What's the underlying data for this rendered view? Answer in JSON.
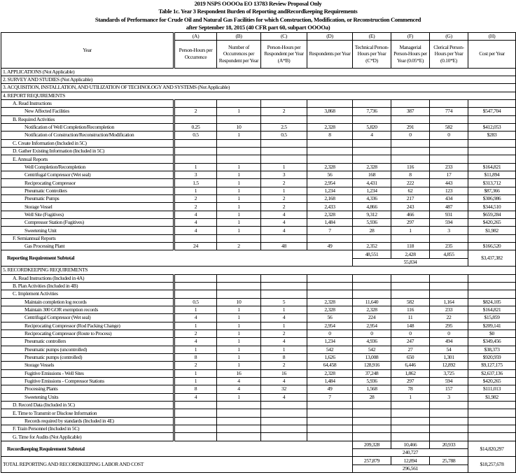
{
  "titles": [
    "2019 NSPS OOOOa EO 13783 Review Proposal Only",
    "Table 1c.  Year 3 Respondent Burden of Reporting andRecordkeeping Requirements",
    "Standards of Performance for Crude Oil and Natural Gas Facilities for which Construction, Modification, or Reconstruction Commenced",
    "after September 18, 2015 (40 CFR part 60, subpart OOOOa)"
  ],
  "header": {
    "year": "Year",
    "letters": [
      "(A)",
      "(B)",
      "(C)",
      "(D)",
      "(E)",
      "(F)",
      "(G)",
      "(H)"
    ],
    "columns": [
      "Person-Hours per Occurrence",
      "Number of Occurrences per Respondent per Year",
      "Person-Hours per Respondent per Year (A*B)",
      "Respondents per Year",
      "Technical Person-Hours per Year (C*D)",
      "Managerial Person-Hours per Year (0.05*E)",
      "Clerical Person-Hours per Year (0.10*E)",
      "Cost per Year"
    ]
  },
  "rows": [
    {
      "type": "section",
      "label": "1. APPLICATIONS (Not Applicable)"
    },
    {
      "type": "section",
      "label": "2. SURVEY AND STUDIES (Not Applicable)"
    },
    {
      "type": "section",
      "label": "3. ACQUISITION, INSTALLATION, AND UTILIZATION OF TECHNOLOGY AND SYSTEMS (Not Applicable)"
    },
    {
      "type": "section",
      "label": "4. REPORT REQUIREMENTS"
    },
    {
      "type": "sub",
      "label": "A. Read Instructions"
    },
    {
      "type": "item",
      "label": "New Affected Facilities",
      "values": [
        "2",
        "1",
        "2",
        "3,868",
        "7,736",
        "387",
        "774",
        "$547,704"
      ]
    },
    {
      "type": "sub",
      "label": "B. Required Activities"
    },
    {
      "type": "item",
      "label": "Notification of Well Completion/Recompletion",
      "values": [
        "0.25",
        "10",
        "2.5",
        "2,328",
        "5,820",
        "291",
        "582",
        "$412,053"
      ]
    },
    {
      "type": "item",
      "label": "Notification of Construction/Reconstruction/Modification",
      "values": [
        "0.5",
        "1",
        "0.5",
        "8",
        "4",
        "0",
        "0",
        "$283"
      ]
    },
    {
      "type": "sub",
      "label": "C. Create Information (Included in 5C)"
    },
    {
      "type": "sub",
      "label": "D. Gather Existing Information (Included in 5C)"
    },
    {
      "type": "sub",
      "label": "E. Annual Reports"
    },
    {
      "type": "item",
      "label": "Well Completion/Recompletion",
      "values": [
        "1",
        "1",
        "1",
        "2,328",
        "2,328",
        "116",
        "233",
        "$164,821"
      ]
    },
    {
      "type": "item",
      "label": "Centrifugal Compressor (Wet seal)",
      "values": [
        "3",
        "1",
        "3",
        "56",
        "168",
        "8",
        "17",
        "$11,894"
      ]
    },
    {
      "type": "item",
      "label": "Reciprocating Compressor",
      "values": [
        "1.5",
        "1",
        "2",
        "2,954",
        "4,431",
        "222",
        "443",
        "$313,712"
      ]
    },
    {
      "type": "item",
      "label": "Pneumatic Controllers",
      "values": [
        "1",
        "1",
        "1",
        "1,234",
        "1,234",
        "62",
        "123",
        "$87,366"
      ]
    },
    {
      "type": "item",
      "label": "Pneumatic Pumps",
      "values": [
        "2",
        "1",
        "2",
        "2,168",
        "4,336",
        "217",
        "434",
        "$306,986"
      ]
    },
    {
      "type": "item",
      "label": "Storage Vessel",
      "values": [
        "2",
        "1",
        "2",
        "2,433",
        "4,866",
        "243",
        "487",
        "$344,510"
      ]
    },
    {
      "type": "item",
      "label": "Well Site (Fugitives)",
      "values": [
        "4",
        "1",
        "4",
        "2,328",
        "9,312",
        "466",
        "931",
        "$659,284"
      ]
    },
    {
      "type": "item",
      "label": "Compressor Station (Fugitives)",
      "values": [
        "4",
        "1",
        "4",
        "1,484",
        "5,936",
        "297",
        "594",
        "$420,265"
      ]
    },
    {
      "type": "item",
      "label": "Sweetening Unit",
      "values": [
        "4",
        "1",
        "4",
        "7",
        "28",
        "1",
        "3",
        "$1,982"
      ]
    },
    {
      "type": "sub",
      "label": "F. Semiannual Reports"
    },
    {
      "type": "item",
      "label": "Gas Processing Plant",
      "values": [
        "24",
        "2",
        "48",
        "49",
        "2,352",
        "118",
        "235",
        "$166,520"
      ]
    },
    {
      "type": "subtotal",
      "label": "Reporting Requirement Subtotal",
      "e": "48,551",
      "f": "2,428",
      "g": "4,855",
      "combined": "55,834",
      "h": "$3,437,382"
    },
    {
      "type": "section",
      "label": "5. RECORDKEEPING REQUIREMENTS"
    },
    {
      "type": "sub",
      "label": "A. Read Instructions (Included in 4A)"
    },
    {
      "type": "sub",
      "label": "B. Plan Activities (Included in 4B)"
    },
    {
      "type": "sub",
      "label": "C. Implement Activities"
    },
    {
      "type": "item",
      "label": "Maintain completion log records",
      "values": [
        "0.5",
        "10",
        "5",
        "2,328",
        "11,640",
        "582",
        "1,164",
        "$824,105"
      ]
    },
    {
      "type": "item",
      "label": "Maintain 300 GOR exemption records",
      "values": [
        "1",
        "1",
        "1",
        "2,328",
        "2,328",
        "116",
        "233",
        "$164,821"
      ]
    },
    {
      "type": "item",
      "label": "Centrifugal Compressor (Wet seal)",
      "values": [
        "4",
        "1",
        "4",
        "56",
        "224",
        "11",
        "22",
        "$15,859"
      ]
    },
    {
      "type": "item",
      "label": "Reciprocating Compressor (Rod Packing Change)",
      "values": [
        "1",
        "1",
        "1",
        "2,954",
        "2,954",
        "148",
        "295",
        "$209,141"
      ]
    },
    {
      "type": "item",
      "label": "Reciprocating Compressor (Route to Process)",
      "values": [
        "2",
        "1",
        "2",
        "0",
        "0",
        "0",
        "0",
        "$0"
      ]
    },
    {
      "type": "item",
      "label": "Pneumatic controllers",
      "values": [
        "4",
        "1",
        "4",
        "1,234",
        "4,936",
        "247",
        "494",
        "$349,456"
      ]
    },
    {
      "type": "item",
      "label": "Pneumatic pumps (uncontrolled)",
      "values": [
        "1",
        "1",
        "1",
        "542",
        "542",
        "27",
        "54",
        "$38,373"
      ]
    },
    {
      "type": "item",
      "label": "Pneumatic pumps (controlled)",
      "values": [
        "8",
        "1",
        "8",
        "1,626",
        "13,008",
        "650",
        "1,301",
        "$920,959"
      ]
    },
    {
      "type": "item",
      "label": "Storage Vessels",
      "values": [
        "2",
        "1",
        "2",
        "64,458",
        "128,916",
        "6,446",
        "12,892",
        "$9,127,175"
      ]
    },
    {
      "type": "item",
      "label": "Fugitive Emissions - Well Sites",
      "values": [
        "1",
        "16",
        "16",
        "2,328",
        "37,248",
        "1,862",
        "3,725",
        "$2,637,136"
      ]
    },
    {
      "type": "item",
      "label": "Fugitive Emissions - Compressor Stations",
      "values": [
        "1",
        "4",
        "4",
        "1,484",
        "5,936",
        "297",
        "594",
        "$420,265"
      ]
    },
    {
      "type": "item",
      "label": "Processing Plants",
      "values": [
        "8",
        "4",
        "32",
        "49",
        "1,568",
        "78",
        "157",
        "$111,013"
      ]
    },
    {
      "type": "item",
      "label": "Sweetening Units",
      "values": [
        "4",
        "1",
        "4",
        "7",
        "28",
        "1",
        "3",
        "$1,982"
      ]
    },
    {
      "type": "sub",
      "label": "D. Record Data (Included in 5C)"
    },
    {
      "type": "sub",
      "label": "E. Time to Transmit or Disclose Information"
    },
    {
      "type": "sub2",
      "label": "Records required by standards (Included in 4E)"
    },
    {
      "type": "sub",
      "label": "F. Train Personnel (Included in 5C)"
    },
    {
      "type": "sub",
      "label": "G. Time for Audits (Not Applicable)"
    },
    {
      "type": "subtotal",
      "label": "Recordkeeping Requirement Subtotal",
      "e": "209,328",
      "f": "10,466",
      "g": "20,933",
      "combined": "240,727",
      "h": "$14,820,297"
    },
    {
      "type": "total",
      "label": "TOTAL REPORTING AND RECORDKEEPING LABOR AND COST",
      "e": "257,879",
      "f": "12,894",
      "g": "25,788",
      "combined": "296,561",
      "h": "$18,257,678"
    }
  ]
}
